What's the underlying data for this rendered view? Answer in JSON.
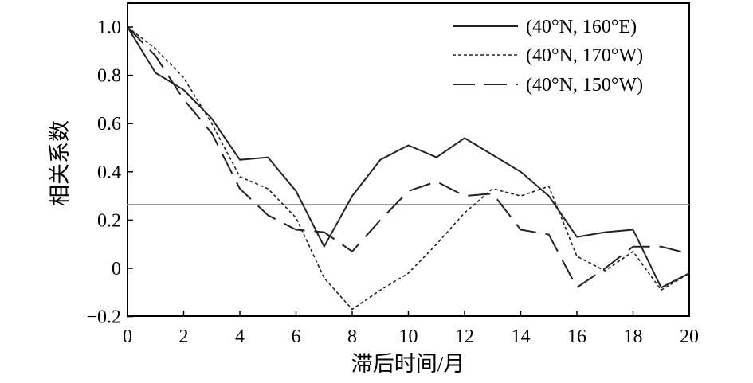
{
  "chart_data": {
    "type": "line",
    "title": "",
    "xlabel": "滞后时间/月",
    "ylabel": "相关系数",
    "xlim": [
      0,
      20
    ],
    "ylim": [
      -0.2,
      1.1
    ],
    "x_ticks": [
      0,
      2,
      4,
      6,
      8,
      10,
      12,
      14,
      16,
      18,
      20
    ],
    "x_tick_labels": [
      "0",
      "2",
      "4",
      "6",
      "8",
      "10",
      "12",
      "14",
      "16",
      "18",
      "20"
    ],
    "y_ticks": [
      -0.2,
      0,
      0.2,
      0.4,
      0.6,
      0.8,
      1.0
    ],
    "y_tick_labels": [
      "−0.2",
      "0",
      "0.2",
      "0.4",
      "0.6",
      "0.8",
      "1.0"
    ],
    "grid": false,
    "legend_position": "top-right",
    "reference_line": {
      "y": 0.265,
      "color": "#999999"
    },
    "x": [
      0,
      1,
      2,
      3,
      4,
      5,
      6,
      7,
      8,
      9,
      10,
      11,
      12,
      13,
      14,
      15,
      16,
      17,
      18,
      19,
      20
    ],
    "series": [
      {
        "name": "(40°N, 160°E)",
        "style": "solid",
        "values": [
          1.0,
          0.81,
          0.74,
          0.62,
          0.45,
          0.46,
          0.32,
          0.09,
          0.3,
          0.45,
          0.51,
          0.46,
          0.54,
          0.47,
          0.4,
          0.3,
          0.13,
          0.15,
          0.16,
          -0.08,
          -0.02
        ]
      },
      {
        "name": "(40°N, 170°W)",
        "style": "dotted",
        "values": [
          1.0,
          0.91,
          0.79,
          0.6,
          0.38,
          0.33,
          0.21,
          -0.04,
          -0.17,
          -0.09,
          -0.02,
          0.1,
          0.23,
          0.33,
          0.3,
          0.34,
          0.05,
          -0.01,
          0.07,
          -0.09,
          -0.02
        ]
      },
      {
        "name": "(40°N, 150°W)",
        "style": "dashed",
        "values": [
          1.0,
          0.88,
          0.7,
          0.56,
          0.33,
          0.22,
          0.16,
          0.15,
          0.07,
          0.2,
          0.32,
          0.36,
          0.3,
          0.31,
          0.16,
          0.14,
          -0.08,
          0.0,
          0.09,
          0.09,
          0.06
        ]
      }
    ]
  }
}
